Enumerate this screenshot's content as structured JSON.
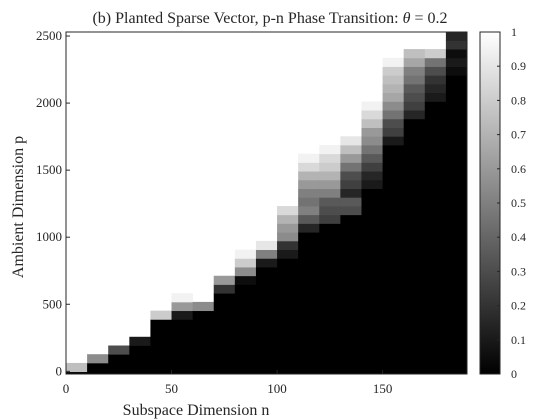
{
  "chart_data": {
    "type": "heatmap",
    "title_prefix": "(b) Planted Sparse Vector, p-n Phase Transition: ",
    "title_theta": "θ",
    "title_suffix": " = 0.2",
    "xlabel": "Subspace Dimension n",
    "ylabel": "Ambient Dimension p",
    "xlim": [
      0,
      190
    ],
    "ylim": [
      -20,
      2530
    ],
    "x_ticks": [
      0,
      50,
      100,
      150
    ],
    "y_ticks": [
      0,
      500,
      1000,
      1500,
      2000,
      2500
    ],
    "colorbar": {
      "range": [
        0,
        1
      ],
      "ticks": [
        0,
        0.1,
        0.2,
        0.3,
        0.4,
        0.5,
        0.6,
        0.7,
        0.8,
        0.9,
        1
      ]
    },
    "colormap": "gray",
    "n_values": [
      5,
      15,
      25,
      35,
      45,
      55,
      65,
      75,
      85,
      95,
      105,
      115,
      125,
      135,
      145,
      155,
      165,
      175,
      185
    ],
    "p_values": [
      30,
      95,
      160,
      225,
      290,
      355,
      420,
      485,
      550,
      615,
      680,
      745,
      810,
      875,
      940,
      1005,
      1070,
      1135,
      1200,
      1265,
      1330,
      1395,
      1460,
      1525,
      1590,
      1655,
      1720,
      1785,
      1850,
      1915,
      1980,
      2045,
      2110,
      2175,
      2240,
      2305,
      2370,
      2435,
      2500
    ],
    "cell_width_n": 10,
    "cell_height_p": 65,
    "boundary": [
      {
        "n": 5,
        "fail_below_p": 30,
        "cells": [
          0.75
        ]
      },
      {
        "n": 15,
        "fail_below_p": 95,
        "cells": [
          0.55
        ]
      },
      {
        "n": 25,
        "fail_below_p": 160,
        "cells": [
          0.3
        ]
      },
      {
        "n": 35,
        "fail_below_p": 225,
        "cells": [
          0.1
        ]
      },
      {
        "n": 45,
        "fail_below_p": 355,
        "cells": [
          0.0,
          0.8
        ]
      },
      {
        "n": 55,
        "fail_below_p": 420,
        "cells": [
          0.1,
          0.6,
          0.95
        ]
      },
      {
        "n": 65,
        "fail_below_p": 485,
        "cells": [
          0.55
        ]
      },
      {
        "n": 75,
        "fail_below_p": 615,
        "cells": [
          0.2,
          0.6
        ]
      },
      {
        "n": 85,
        "fail_below_p": 680,
        "cells": [
          0.05,
          0.55,
          0.8,
          0.95
        ]
      },
      {
        "n": 95,
        "fail_below_p": 810,
        "cells": [
          0.1,
          0.5,
          0.9
        ]
      },
      {
        "n": 105,
        "fail_below_p": 875,
        "cells": [
          0.1,
          0.2,
          0.55,
          0.6,
          0.7,
          0.85
        ]
      },
      {
        "n": 115,
        "fail_below_p": 1070,
        "cells": [
          0.15,
          0.35,
          0.5,
          0.45,
          0.5,
          0.6,
          0.7,
          0.85,
          0.95
        ]
      },
      {
        "n": 125,
        "fail_below_p": 1135,
        "cells": [
          0.25,
          0.3,
          0.35,
          0.5,
          0.6,
          0.7,
          0.8,
          0.85,
          0.95
        ]
      },
      {
        "n": 135,
        "fail_below_p": 1200,
        "cells": [
          0.3,
          0.35,
          0.15,
          0.25,
          0.3,
          0.45,
          0.6,
          0.75,
          0.9
        ]
      },
      {
        "n": 145,
        "fail_below_p": 1395,
        "cells": [
          0.1,
          0.15,
          0.25,
          0.35,
          0.45,
          0.55,
          0.6,
          0.75,
          0.85,
          0.95
        ]
      },
      {
        "n": 155,
        "fail_below_p": 1720,
        "cells": [
          0.1,
          0.25,
          0.3,
          0.45,
          0.55,
          0.65,
          0.7,
          0.75,
          0.8,
          0.95
        ]
      },
      {
        "n": 165,
        "fail_below_p": 1915,
        "cells": [
          0.15,
          0.25,
          0.3,
          0.35,
          0.45,
          0.5,
          0.65,
          0.75
        ]
      },
      {
        "n": 175,
        "fail_below_p": 2045,
        "cells": [
          0.1,
          0.15,
          0.2,
          0.3,
          0.45,
          0.8
        ]
      },
      {
        "n": 185,
        "fail_below_p": 2240,
        "cells": [
          0.05,
          0.1,
          0.05,
          0.2,
          0.15
        ]
      }
    ]
  }
}
